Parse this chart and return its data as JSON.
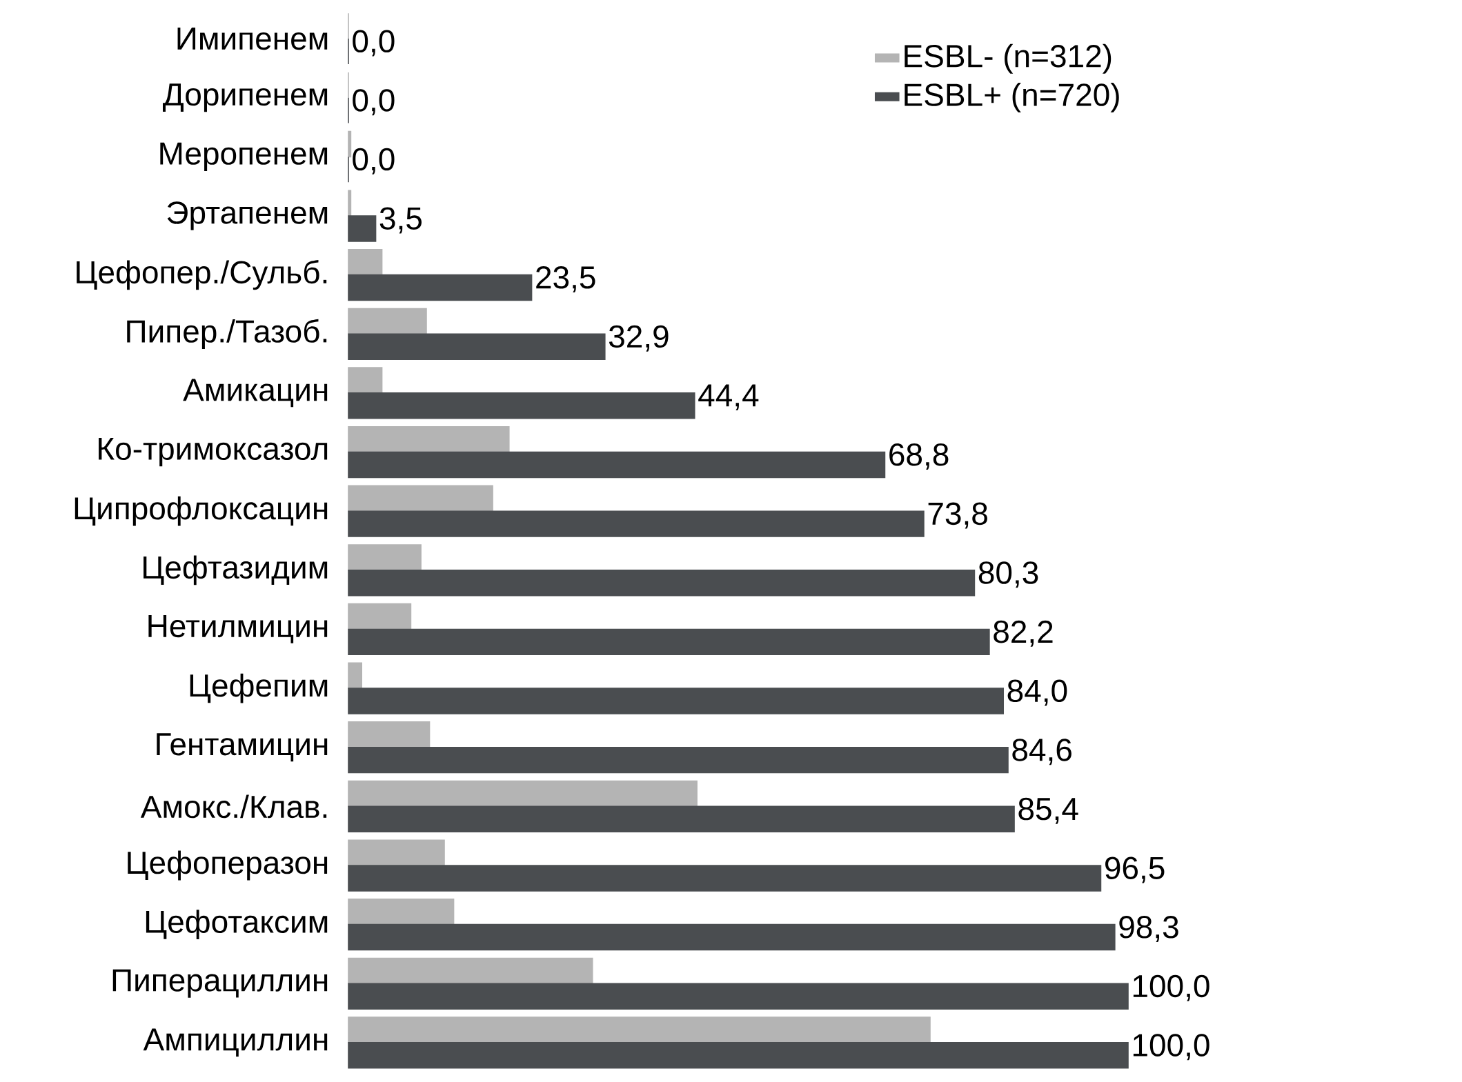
{
  "chart_data": {
    "type": "bar",
    "orientation": "horizontal",
    "legend": "top right",
    "xlim": [
      0,
      100
    ],
    "categories": [
      "Имипенем",
      "Дорипенем",
      "Меропенем",
      "Эртапенем",
      "Цефопер./Сульб.",
      "Пипер./Тазоб.",
      "Амикацин",
      "Ко-тримоксазол",
      "Ципрофлоксацин",
      "Цефтазидим",
      "Нетилмицин",
      "Цефепим",
      "Гентамицин",
      "Амокс./Клав.",
      "Цефоперазон",
      "Цефотаксим",
      "Пиперациллин",
      "Ампициллин"
    ],
    "series": [
      {
        "name": "ESBL- (n=312)",
        "color": "#b4b4b4",
        "values": [
          0,
          0,
          0.3,
          0.3,
          4.3,
          10.0,
          4.3,
          20.6,
          18.5,
          9.3,
          8.0,
          1.7,
          10.4,
          44.7,
          12.3,
          13.5,
          31.3,
          74.6
        ]
      },
      {
        "name": "ESBL+ (n=720)",
        "color": "#4a4d50",
        "values": [
          0.0,
          0.0,
          0.0,
          3.5,
          23.5,
          32.9,
          44.4,
          68.8,
          73.8,
          80.3,
          82.2,
          84.0,
          84.6,
          85.4,
          96.5,
          98.3,
          100.0,
          100.0
        ],
        "value_labels": [
          "0,0",
          "0,0",
          "0,0",
          "3,5",
          "23,5",
          "32,9",
          "44,4",
          "68,8",
          "73,8",
          "80,3",
          "82,2",
          "84,0",
          "84,6",
          "85,4",
          "96,5",
          "98,3",
          "100,0",
          "100,0"
        ]
      }
    ]
  }
}
